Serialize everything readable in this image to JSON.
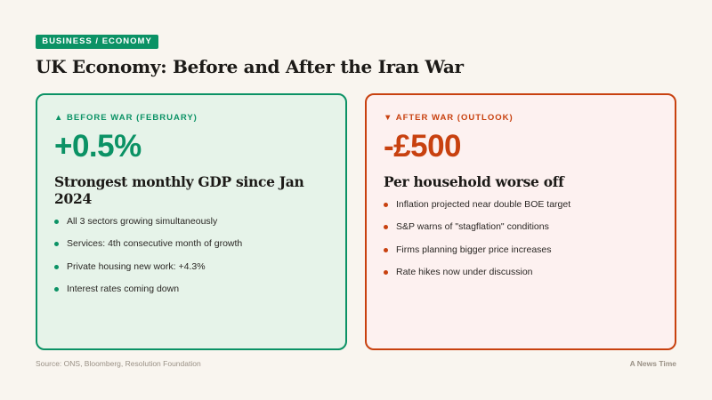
{
  "tag": "BUSINESS / ECONOMY",
  "title": "UK Economy: Before and After the Iran War",
  "before": {
    "icon": "▲",
    "label": "BEFORE WAR (FEBRUARY)",
    "value": "+0.5%",
    "subtitle": "Strongest monthly GDP since Jan 2024",
    "bullets": [
      "All 3 sectors growing simultaneously",
      "Services: 4th consecutive month of growth",
      "Private housing new work: +4.3%",
      "Interest rates coming down"
    ]
  },
  "after": {
    "icon": "▼",
    "label": "AFTER WAR (OUTLOOK)",
    "value": "-£500",
    "subtitle": "Per household worse off",
    "bullets": [
      "Inflation projected near double BOE target",
      "S&P warns of \"stagflation\" conditions",
      "Firms planning bigger price increases",
      "Rate hikes now under discussion"
    ]
  },
  "source": "Source: ONS, Bloomberg, Resolution Foundation",
  "brand": "A News Time",
  "colors": {
    "green": "#0b9265",
    "red": "#c8410f",
    "background": "#f9f5ef"
  }
}
